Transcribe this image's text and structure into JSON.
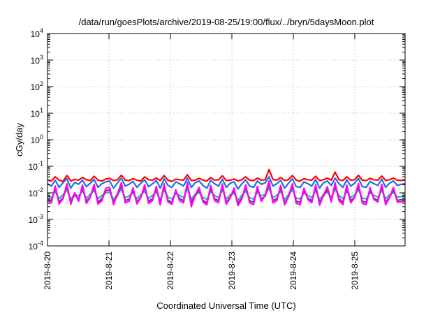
{
  "chart_data": {
    "type": "line",
    "title": "/data/run/goesPlots/archive/2019-08-25/19:00/flux/../bryn/5daysMoon.plot",
    "xlabel": "Coordinated Universal Time (UTC)",
    "ylabel": "cGy/day",
    "yscale": "log",
    "ylim": [
      0.0001,
      10000
    ],
    "xlim": [
      "2019-08-20 00:00",
      "2019-08-25 20:00"
    ],
    "grid": true,
    "x_ticks": [
      "2019-8-20",
      "2019-8-21",
      "2019-8-22",
      "2019-8-23",
      "2019-8-24",
      "2019-8-25"
    ],
    "y_ticks": [
      {
        "value": 0.0001,
        "base": "10",
        "exp": "-4"
      },
      {
        "value": 0.001,
        "base": "10",
        "exp": "-3"
      },
      {
        "value": 0.01,
        "base": "10",
        "exp": "-2"
      },
      {
        "value": 0.1,
        "base": "10",
        "exp": "-1"
      },
      {
        "value": 1,
        "base": "10",
        "exp": "0"
      },
      {
        "value": 10,
        "base": "10",
        "exp": "1"
      },
      {
        "value": 100,
        "base": "10",
        "exp": "2"
      },
      {
        "value": 1000,
        "base": "10",
        "exp": "3"
      },
      {
        "value": 10000,
        "base": "10",
        "exp": "4"
      }
    ],
    "series": [
      {
        "color": "#ff0000",
        "values": [
          0.03,
          0.028,
          0.04,
          0.03,
          0.027,
          0.045,
          0.028,
          0.032,
          0.03,
          0.038,
          0.031,
          0.029,
          0.042,
          0.03,
          0.028,
          0.033,
          0.035,
          0.029,
          0.031,
          0.046,
          0.03,
          0.029,
          0.034,
          0.03,
          0.028,
          0.04,
          0.031,
          0.03,
          0.036,
          0.029,
          0.045,
          0.03,
          0.027,
          0.033,
          0.031,
          0.03,
          0.048,
          0.029,
          0.03,
          0.035,
          0.03,
          0.028,
          0.038,
          0.03,
          0.031,
          0.044,
          0.029,
          0.03,
          0.033,
          0.028,
          0.031,
          0.04,
          0.03,
          0.029,
          0.036,
          0.03,
          0.031,
          0.075,
          0.032,
          0.03,
          0.038,
          0.029,
          0.031,
          0.045,
          0.03,
          0.028,
          0.034,
          0.031,
          0.03,
          0.042,
          0.029,
          0.031,
          0.036,
          0.03,
          0.06,
          0.031,
          0.029,
          0.04,
          0.03,
          0.031,
          0.046,
          0.03,
          0.029,
          0.035,
          0.031,
          0.03,
          0.043,
          0.029,
          0.031,
          0.036,
          0.03,
          0.029,
          0.031
        ]
      },
      {
        "color": "#1e6ee6",
        "values": [
          0.022,
          0.018,
          0.03,
          0.016,
          0.024,
          0.034,
          0.015,
          0.025,
          0.021,
          0.03,
          0.017,
          0.023,
          0.032,
          0.016,
          0.022,
          0.026,
          0.028,
          0.015,
          0.024,
          0.035,
          0.018,
          0.021,
          0.027,
          0.016,
          0.023,
          0.031,
          0.017,
          0.022,
          0.029,
          0.015,
          0.034,
          0.019,
          0.016,
          0.026,
          0.022,
          0.018,
          0.036,
          0.016,
          0.024,
          0.028,
          0.019,
          0.015,
          0.03,
          0.022,
          0.018,
          0.033,
          0.016,
          0.023,
          0.026,
          0.014,
          0.022,
          0.031,
          0.018,
          0.016,
          0.028,
          0.021,
          0.024,
          0.04,
          0.018,
          0.022,
          0.03,
          0.015,
          0.023,
          0.034,
          0.017,
          0.016,
          0.026,
          0.022,
          0.018,
          0.032,
          0.015,
          0.024,
          0.028,
          0.019,
          0.036,
          0.022,
          0.016,
          0.031,
          0.018,
          0.023,
          0.035,
          0.017,
          0.016,
          0.027,
          0.022,
          0.019,
          0.033,
          0.016,
          0.023,
          0.028,
          0.019,
          0.021,
          0.022
        ]
      },
      {
        "color": "#20c08a",
        "values": [
          0.008,
          0.0065,
          0.011,
          0.006,
          0.0085,
          0.013,
          0.0058,
          0.009,
          0.0075,
          0.012,
          0.0062,
          0.0088,
          0.0125,
          0.006,
          0.008,
          0.01,
          0.0105,
          0.0057,
          0.009,
          0.0135,
          0.0065,
          0.0078,
          0.01,
          0.006,
          0.0085,
          0.0115,
          0.0062,
          0.008,
          0.0108,
          0.0056,
          0.013,
          0.0068,
          0.0059,
          0.0095,
          0.008,
          0.0066,
          0.014,
          0.0058,
          0.0088,
          0.0102,
          0.0068,
          0.0056,
          0.0112,
          0.008,
          0.0065,
          0.0128,
          0.0059,
          0.0085,
          0.0098,
          0.0052,
          0.0082,
          0.0115,
          0.0066,
          0.0058,
          0.0105,
          0.0077,
          0.0088,
          0.015,
          0.0066,
          0.008,
          0.0112,
          0.0056,
          0.0086,
          0.013,
          0.0063,
          0.0059,
          0.0098,
          0.0081,
          0.0066,
          0.012,
          0.0056,
          0.0088,
          0.0105,
          0.0069,
          0.0135,
          0.008,
          0.0059,
          0.0116,
          0.0066,
          0.0085,
          0.0132,
          0.0063,
          0.0059,
          0.01,
          0.0081,
          0.0069,
          0.0125,
          0.0059,
          0.0085,
          0.0104,
          0.0069,
          0.0072,
          0.0075
        ]
      },
      {
        "color": "#7a2a8e",
        "values": [
          0.006,
          0.005,
          0.015,
          0.0045,
          0.0065,
          0.018,
          0.0044,
          0.0085,
          0.0056,
          0.016,
          0.0047,
          0.007,
          0.017,
          0.0045,
          0.006,
          0.012,
          0.013,
          0.0043,
          0.008,
          0.019,
          0.005,
          0.0058,
          0.0125,
          0.0045,
          0.0068,
          0.016,
          0.0047,
          0.006,
          0.014,
          0.0042,
          0.018,
          0.0052,
          0.0044,
          0.011,
          0.006,
          0.005,
          0.02,
          0.0044,
          0.0075,
          0.013,
          0.0052,
          0.0042,
          0.015,
          0.006,
          0.005,
          0.0175,
          0.0044,
          0.0068,
          0.012,
          0.004,
          0.0064,
          0.016,
          0.005,
          0.0044,
          0.014,
          0.0058,
          0.0075,
          0.022,
          0.005,
          0.006,
          0.015,
          0.0042,
          0.007,
          0.018,
          0.0048,
          0.0044,
          0.012,
          0.0062,
          0.005,
          0.0165,
          0.0042,
          0.0075,
          0.0135,
          0.0052,
          0.019,
          0.006,
          0.0044,
          0.0155,
          0.005,
          0.0068,
          0.018,
          0.0048,
          0.0044,
          0.0125,
          0.0062,
          0.0052,
          0.017,
          0.0044,
          0.0068,
          0.013,
          0.0052,
          0.0055,
          0.0058
        ]
      },
      {
        "color": "#ff00ff",
        "values": [
          0.005,
          0.0042,
          0.018,
          0.0038,
          0.006,
          0.022,
          0.0037,
          0.01,
          0.0048,
          0.02,
          0.004,
          0.0068,
          0.021,
          0.0038,
          0.005,
          0.015,
          0.016,
          0.0036,
          0.009,
          0.024,
          0.0042,
          0.0048,
          0.0155,
          0.0038,
          0.0065,
          0.02,
          0.004,
          0.005,
          0.0175,
          0.0035,
          0.022,
          0.0045,
          0.0037,
          0.013,
          0.005,
          0.0042,
          0.025,
          0.003,
          0.008,
          0.016,
          0.0045,
          0.0035,
          0.019,
          0.005,
          0.0042,
          0.0215,
          0.0037,
          0.0065,
          0.015,
          0.0033,
          0.0058,
          0.02,
          0.0042,
          0.0036,
          0.0175,
          0.0048,
          0.008,
          0.028,
          0.0042,
          0.005,
          0.019,
          0.0035,
          0.007,
          0.022,
          0.004,
          0.0036,
          0.015,
          0.0056,
          0.0042,
          0.0205,
          0.0034,
          0.008,
          0.017,
          0.0045,
          0.024,
          0.005,
          0.0036,
          0.0195,
          0.0042,
          0.0065,
          0.0225,
          0.004,
          0.0036,
          0.0155,
          0.0056,
          0.0045,
          0.021,
          0.0036,
          0.0065,
          0.016,
          0.0045,
          0.0046,
          0.0048
        ]
      }
    ]
  }
}
